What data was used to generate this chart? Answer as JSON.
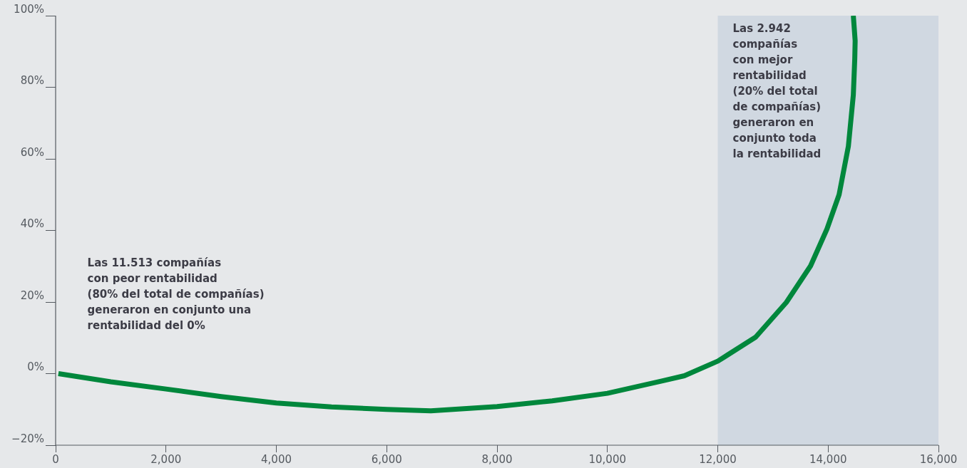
{
  "chart_data": {
    "type": "line",
    "x": [
      50,
      1000,
      2000,
      3000,
      4000,
      5000,
      6000,
      6800,
      8000,
      9000,
      10000,
      11000,
      11395,
      12003,
      12687,
      13243,
      13682,
      13979,
      14199,
      14367,
      14457,
      14483,
      14490,
      14457
    ],
    "series": [
      {
        "color": "#00873c",
        "values": [
          0,
          -2.3,
          -4.3,
          -6.4,
          -8.2,
          -9.3,
          -10,
          -10.4,
          -9.2,
          -7.6,
          -5.5,
          -2,
          -0.6,
          3.5,
          10.2,
          19.9,
          30.1,
          40.4,
          50,
          63.5,
          77.9,
          88,
          93,
          100
        ]
      }
    ],
    "xlim": [
      0,
      16000
    ],
    "xticks": [
      {
        "value": 0,
        "label": "0"
      },
      {
        "value": 2000,
        "label": "2,000"
      },
      {
        "value": 4000,
        "label": "4,000"
      },
      {
        "value": 6000,
        "label": "6,000"
      },
      {
        "value": 8000,
        "label": "8,000"
      },
      {
        "value": 10000,
        "label": "10,000"
      },
      {
        "value": 12000,
        "label": "12,000"
      },
      {
        "value": 14000,
        "label": "14,000"
      },
      {
        "value": 16000,
        "label": "16,000"
      }
    ],
    "ylim": [
      -20,
      100
    ],
    "yticks": [
      {
        "value": -20,
        "label": "−20%"
      },
      {
        "value": 0,
        "label": "0%"
      },
      {
        "value": 20,
        "label": "20%"
      },
      {
        "value": 40,
        "label": "40%"
      },
      {
        "value": 60,
        "label": "60%"
      },
      {
        "value": 80,
        "label": "80%"
      },
      {
        "value": 100,
        "label": "100%"
      }
    ],
    "bands": [
      {
        "axis": "x",
        "from": 12000,
        "to": 16000,
        "color": "#d0d8e1"
      }
    ],
    "annotations": [
      "Las 11.513 compañías\ncon peor rentabilidad\n(80% del total de compañías)\ngeneraron en conjunto una\nrentabilidad del 0%",
      "Las 2.942\ncompañías\ncon mejor\nrentabilidad\n(20% del total\nde compañías)\ngeneraron en\nconjunto toda\nla rentabilidad"
    ],
    "grid": false,
    "legend": false,
    "marker": "none",
    "line_style": "solid"
  }
}
